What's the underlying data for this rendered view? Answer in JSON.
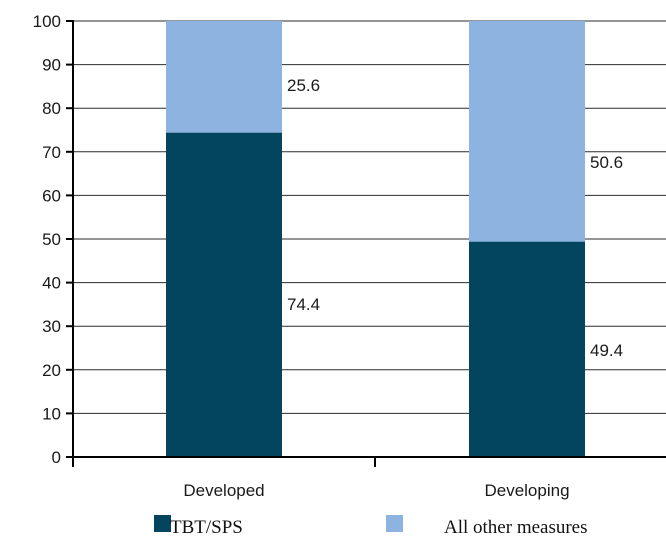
{
  "chart_data": {
    "type": "bar",
    "stacked": true,
    "categories": [
      "Developed",
      "Developing"
    ],
    "series": [
      {
        "name": "TBT/SPS",
        "values": [
          74.4,
          49.4
        ],
        "color": "#03445e"
      },
      {
        "name": "All other measures",
        "values": [
          25.6,
          50.6
        ],
        "color": "#8db4e0"
      }
    ],
    "data_labels": [
      [
        "74.4",
        "49.4"
      ],
      [
        "25.6",
        "50.6"
      ]
    ],
    "yticks": [
      0,
      10,
      20,
      30,
      40,
      50,
      60,
      70,
      80,
      90,
      100
    ],
    "ylim": [
      0,
      100
    ],
    "grid": true,
    "legend_position": "bottom",
    "title": "",
    "xlabel": "",
    "ylabel": ""
  }
}
